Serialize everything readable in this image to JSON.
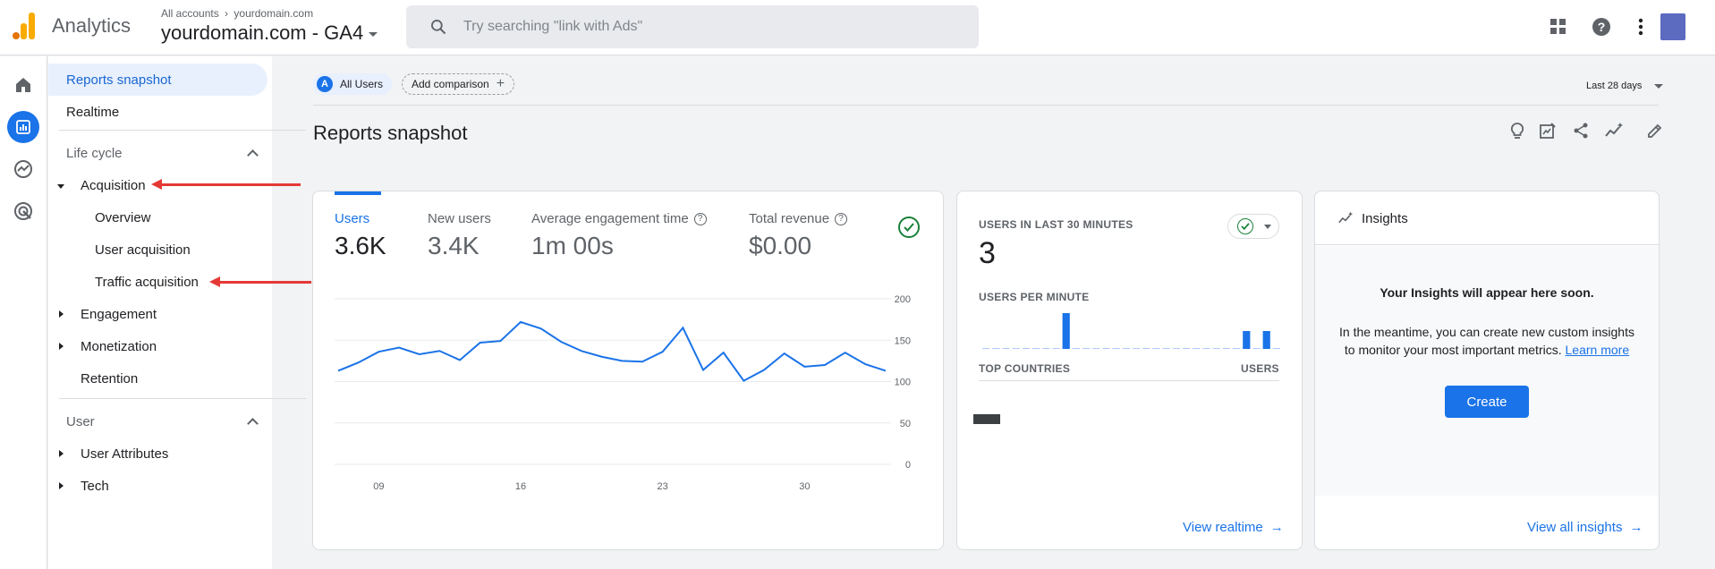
{
  "header": {
    "app_name": "Analytics",
    "breadcrumb_account": "All accounts",
    "breadcrumb_property": "yourdomain.com",
    "property_name": "yourdomain.com - GA4",
    "search_placeholder": "Try searching \"link with Ads\""
  },
  "rail": [
    "home-icon",
    "reports-icon",
    "explore-icon",
    "advertising-icon"
  ],
  "nav": {
    "reports_snapshot": "Reports snapshot",
    "realtime": "Realtime",
    "lifecycle": "Life cycle",
    "acquisition": "Acquisition",
    "overview": "Overview",
    "user_acquisition": "User acquisition",
    "traffic_acquisition": "Traffic acquisition",
    "engagement": "Engagement",
    "monetization": "Monetization",
    "retention": "Retention",
    "user": "User",
    "user_attributes": "User Attributes",
    "tech": "Tech"
  },
  "main": {
    "segment_letter": "A",
    "segment": "All Users",
    "add_comparison": "Add comparison",
    "date_range": "Last 28 days",
    "title": "Reports snapshot"
  },
  "metrics": [
    {
      "label": "Users",
      "value": "3.6K"
    },
    {
      "label": "New users",
      "value": "3.4K"
    },
    {
      "label": "Average engagement time",
      "value": "1m 00s"
    },
    {
      "label": "Total revenue",
      "value": "$0.00"
    }
  ],
  "chart_data": {
    "type": "line",
    "x_ticks": [
      "09",
      "16",
      "23",
      "30"
    ],
    "y_ticks": [
      "200",
      "150",
      "100",
      "50",
      "0"
    ],
    "ylim": [
      0,
      200
    ],
    "series": [
      {
        "values": [
          113,
          123,
          136,
          141,
          133,
          137,
          126,
          147,
          149,
          172,
          164,
          148,
          137,
          130,
          125,
          124,
          136,
          165,
          114,
          135,
          101,
          114,
          134,
          118,
          120,
          135,
          121,
          113
        ]
      }
    ]
  },
  "realtime": {
    "title": "USERS IN LAST 30 MINUTES",
    "value": "3",
    "per_minute_label": "USERS PER MINUTE",
    "per_minute": [
      0,
      0,
      0,
      0,
      0,
      0,
      0,
      0,
      2,
      0,
      0,
      0,
      0,
      0,
      0,
      0,
      0,
      0,
      0,
      0,
      0,
      0,
      0,
      0,
      0,
      0,
      1,
      0,
      1,
      0
    ],
    "top_countries": "TOP COUNTRIES",
    "users_col": "USERS",
    "link": "View realtime"
  },
  "insights": {
    "title": "Insights",
    "headline": "Your Insights will appear here soon.",
    "body1": "In the meantime, you can create new custom insights",
    "body2": "to monitor your most important metrics.",
    "learn_more": "Learn more",
    "create": "Create",
    "link": "View all insights"
  }
}
